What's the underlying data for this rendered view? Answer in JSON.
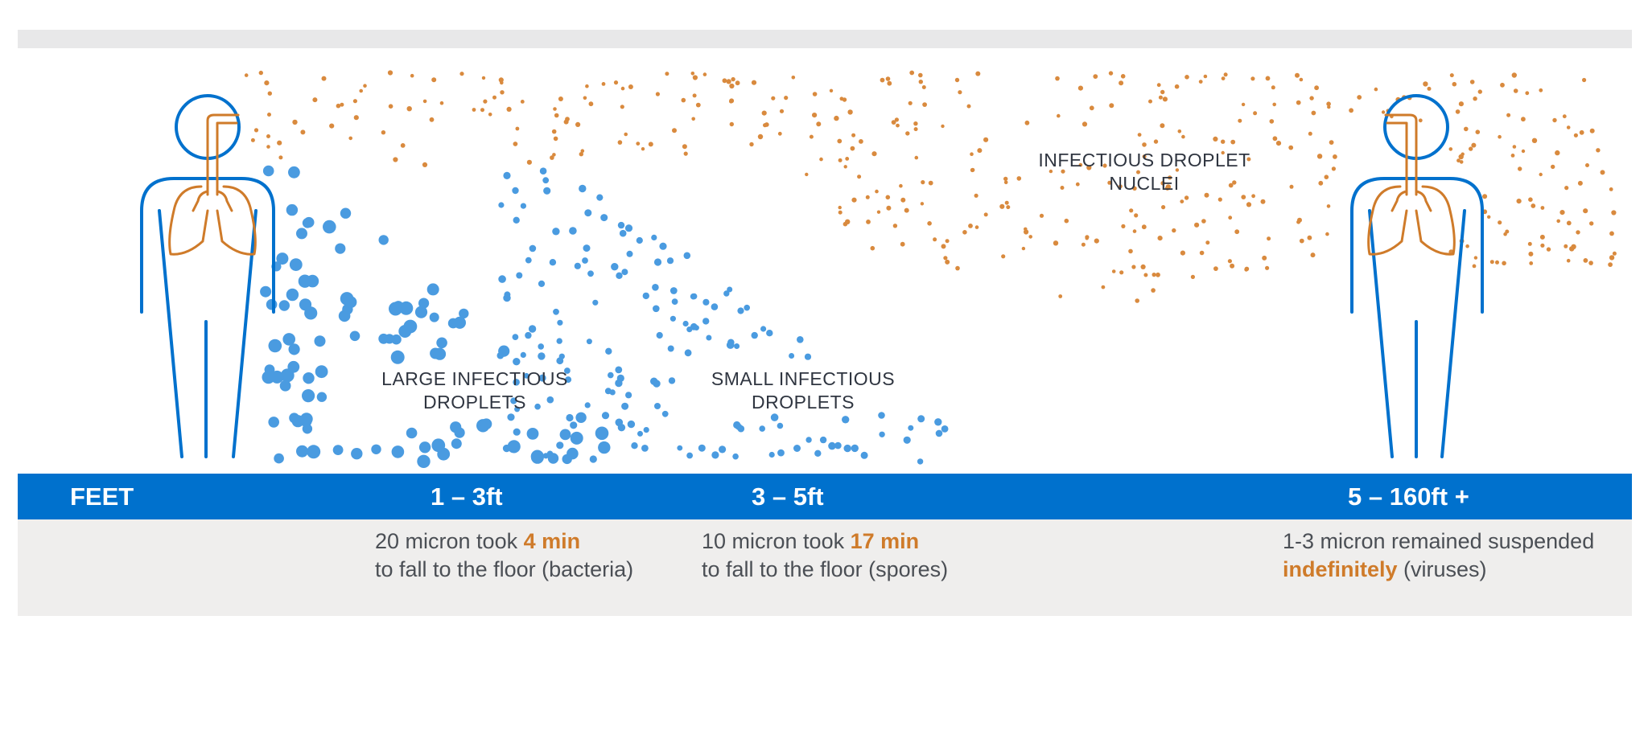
{
  "colors": {
    "blue": "#0071cd",
    "droplet_blue": "#4a9be0",
    "orange": "#cf7b2a",
    "nuclei_orange": "#d98a3e",
    "band_gray": "#efeeed",
    "text_dark": "#2f3540"
  },
  "icons": [
    "person-left-icon",
    "person-right-icon",
    "lungs-icon",
    "head-icon"
  ],
  "labels": {
    "large_line1": "LARGE INFECTIOUS",
    "large_line2": "DROPLETS",
    "small_line1": "SMALL INFECTIOUS",
    "small_line2": "DROPLETS",
    "nuclei_line1": "INFECTIOUS DROPLET",
    "nuclei_line2": "NUCLEI"
  },
  "bar": {
    "feet": "FEET",
    "range1": "1 – 3ft",
    "range2": "3 – 5ft",
    "range3": "5 – 160ft +"
  },
  "notes": {
    "n1_pre": "20 micron took ",
    "n1_hl": "4 min",
    "n1_line2": "to fall to the floor (bacteria)",
    "n2_pre": "10 micron took ",
    "n2_hl": "17 min",
    "n2_line2": "to fall to the floor (spores)",
    "n3_line1": "1-3 micron remained suspended",
    "n3_hl": "indefinitely",
    "n3_post": " (viruses)"
  }
}
